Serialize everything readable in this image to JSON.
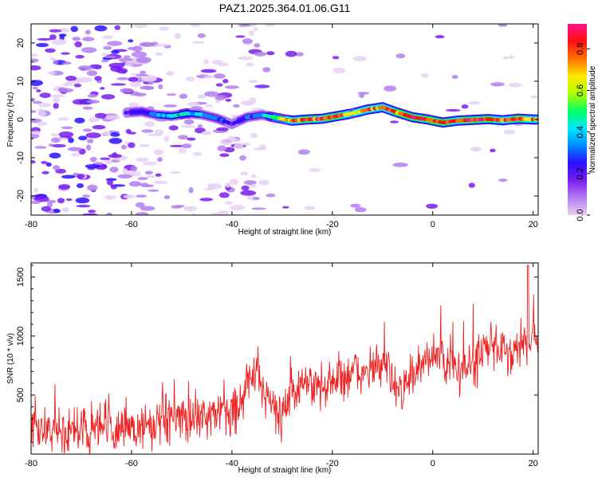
{
  "title": "PAZ1.2025.364.01.06.G11",
  "chart_data": [
    {
      "type": "heatmap",
      "title": "PAZ1.2025.364.01.06.G11",
      "xlabel": "Height of straight line (km)",
      "ylabel": "Frequency (Hz)",
      "xlim": [
        -80,
        21
      ],
      "ylim": [
        -25,
        25
      ],
      "xticks": [
        -80,
        -60,
        -40,
        -20,
        0,
        20
      ],
      "yticks": [
        20,
        10,
        0,
        -10,
        -20
      ],
      "colorbar": {
        "label": "Normalized spectral amplitude",
        "range": [
          0.0,
          0.92
        ],
        "ticks": [
          0.0,
          0.2,
          0.4,
          0.6,
          0.8
        ],
        "colors": [
          "#e8d0f4",
          "#b37ef0",
          "#7a1cf0",
          "#2a10ff",
          "#008cff",
          "#00e8ff",
          "#00ff60",
          "#b0ff00",
          "#ffe800",
          "#ff7000",
          "#ff1010",
          "#ff108c"
        ]
      },
      "ridge": {
        "x": [
          -61,
          -58,
          -55,
          -52,
          -49,
          -46,
          -43,
          -40,
          -37,
          -34,
          -31,
          -28,
          -25,
          -22,
          -19,
          -16,
          -13,
          -10,
          -7,
          -4,
          -1,
          2,
          5,
          8,
          11,
          14,
          17,
          20
        ],
        "y": [
          1.8,
          2.1,
          1.2,
          0.9,
          1.6,
          1.3,
          0.3,
          -1.2,
          0.6,
          1.2,
          0.4,
          -0.3,
          0.0,
          0.2,
          0.9,
          1.6,
          2.6,
          3.2,
          1.8,
          0.6,
          0.0,
          -0.8,
          -0.3,
          -0.1,
          0.1,
          -0.2,
          0.2,
          0.0
        ],
        "amp": [
          0.25,
          0.28,
          0.38,
          0.42,
          0.45,
          0.38,
          0.32,
          0.22,
          0.3,
          0.35,
          0.55,
          0.7,
          0.8,
          0.75,
          0.85,
          0.62,
          0.75,
          0.7,
          0.78,
          0.8,
          0.85,
          0.8,
          0.75,
          0.85,
          0.82,
          0.7,
          0.8,
          0.7
        ]
      }
    },
    {
      "type": "line",
      "xlabel": "Height of straight line (km)",
      "ylabel": "SNR (10 * v/v)",
      "xlim": [
        -80,
        21
      ],
      "ylim": [
        0,
        1620
      ],
      "xticks": [
        -80,
        -60,
        -40,
        -20,
        0,
        20
      ],
      "yticks": [
        1500,
        1000,
        500
      ],
      "series": [
        {
          "name": "SNR",
          "color": "#ee2222",
          "x": [
            -80,
            -75,
            -70,
            -65,
            -60,
            -55,
            -50,
            -45,
            -42,
            -40,
            -38,
            -37,
            -35,
            -33,
            -31,
            -30,
            -28,
            -25,
            -22,
            -20,
            -18,
            -15,
            -12,
            -10,
            -8,
            -6,
            -4,
            -2,
            0,
            2,
            5,
            8,
            10,
            12,
            15,
            18,
            20,
            21
          ],
          "mean": [
            230,
            200,
            200,
            210,
            230,
            260,
            300,
            330,
            340,
            360,
            470,
            600,
            680,
            500,
            350,
            330,
            520,
            600,
            560,
            620,
            650,
            680,
            720,
            760,
            620,
            560,
            650,
            720,
            880,
            780,
            720,
            760,
            880,
            900,
            860,
            950,
            1000,
            950
          ],
          "noise": 170,
          "n_points": 1000,
          "peak": 1600
        }
      ]
    }
  ]
}
